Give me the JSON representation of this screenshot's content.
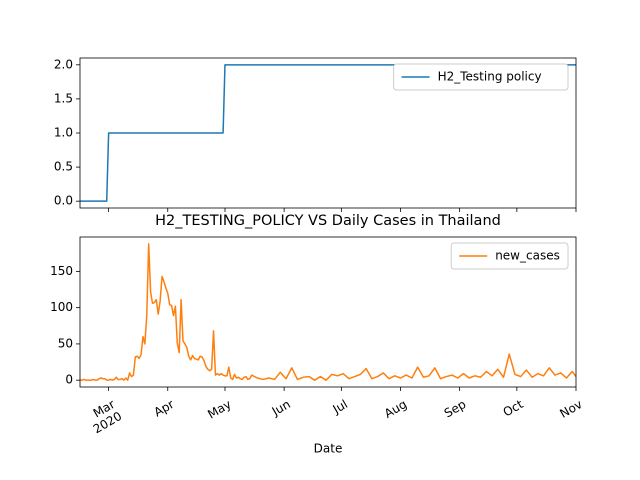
{
  "chart_data": [
    {
      "type": "line",
      "x": [
        "2020-02-15",
        "2020-02-29",
        "2020-03-01",
        "2020-04-30",
        "2020-05-01",
        "2020-11-01"
      ],
      "series": [
        {
          "name": "H2_Testing policy",
          "color": "#1f77b4",
          "values": [
            0,
            0,
            1,
            1,
            2,
            2
          ]
        }
      ],
      "xlim": [
        "2020-02-15",
        "2020-11-01"
      ],
      "xticks": [
        "2020-03-01",
        "2020-04-01",
        "2020-05-01",
        "2020-06-01",
        "2020-07-01",
        "2020-08-01",
        "2020-09-01",
        "2020-10-01",
        "2020-11-01"
      ],
      "ylim": [
        -0.1,
        2.1
      ],
      "yticks": [
        {
          "value": 0,
          "label": "0.0"
        },
        0.5,
        {
          "value": 1,
          "label": "1.0"
        },
        1.5,
        {
          "value": 2,
          "label": "2.0"
        }
      ],
      "legend": "upper right"
    },
    {
      "type": "line",
      "title": "H2_TESTING_POLICY VS Daily Cases in Thailand",
      "x_label": "Date",
      "x": [
        "2020-02-15",
        "2020-02-16",
        "2020-02-17",
        "2020-02-18",
        "2020-02-19",
        "2020-02-20",
        "2020-02-21",
        "2020-02-22",
        "2020-02-23",
        "2020-02-24",
        "2020-02-25",
        "2020-02-26",
        "2020-02-27",
        "2020-02-28",
        "2020-02-29",
        "2020-03-01",
        "2020-03-02",
        "2020-03-03",
        "2020-03-04",
        "2020-03-05",
        "2020-03-06",
        "2020-03-07",
        "2020-03-08",
        "2020-03-09",
        "2020-03-10",
        "2020-03-11",
        "2020-03-12",
        "2020-03-13",
        "2020-03-14",
        "2020-03-15",
        "2020-03-16",
        "2020-03-17",
        "2020-03-18",
        "2020-03-19",
        "2020-03-20",
        "2020-03-21",
        "2020-03-22",
        "2020-03-23",
        "2020-03-24",
        "2020-03-25",
        "2020-03-26",
        "2020-03-27",
        "2020-03-28",
        "2020-03-29",
        "2020-03-30",
        "2020-03-31",
        "2020-04-01",
        "2020-04-02",
        "2020-04-03",
        "2020-04-04",
        "2020-04-05",
        "2020-04-06",
        "2020-04-07",
        "2020-04-08",
        "2020-04-09",
        "2020-04-10",
        "2020-04-11",
        "2020-04-12",
        "2020-04-13",
        "2020-04-14",
        "2020-04-15",
        "2020-04-16",
        "2020-04-17",
        "2020-04-18",
        "2020-04-19",
        "2020-04-20",
        "2020-04-21",
        "2020-04-22",
        "2020-04-23",
        "2020-04-24",
        "2020-04-25",
        "2020-04-26",
        "2020-04-27",
        "2020-04-28",
        "2020-04-29",
        "2020-04-30",
        "2020-05-01",
        "2020-05-02",
        "2020-05-03",
        "2020-05-04",
        "2020-05-05",
        "2020-05-06",
        "2020-05-07",
        "2020-05-08",
        "2020-05-09",
        "2020-05-10",
        "2020-05-11",
        "2020-05-12",
        "2020-05-13",
        "2020-05-14",
        "2020-05-15",
        "2020-05-18",
        "2020-05-21",
        "2020-05-24",
        "2020-05-27",
        "2020-05-30",
        "2020-06-02",
        "2020-06-05",
        "2020-06-08",
        "2020-06-11",
        "2020-06-14",
        "2020-06-17",
        "2020-06-20",
        "2020-06-23",
        "2020-06-26",
        "2020-06-29",
        "2020-07-02",
        "2020-07-05",
        "2020-07-08",
        "2020-07-11",
        "2020-07-14",
        "2020-07-17",
        "2020-07-20",
        "2020-07-23",
        "2020-07-26",
        "2020-07-29",
        "2020-08-01",
        "2020-08-04",
        "2020-08-07",
        "2020-08-10",
        "2020-08-13",
        "2020-08-16",
        "2020-08-19",
        "2020-08-22",
        "2020-08-25",
        "2020-08-28",
        "2020-08-31",
        "2020-09-03",
        "2020-09-06",
        "2020-09-09",
        "2020-09-12",
        "2020-09-15",
        "2020-09-18",
        "2020-09-21",
        "2020-09-24",
        "2020-09-27",
        "2020-09-30",
        "2020-10-03",
        "2020-10-06",
        "2020-10-09",
        "2020-10-12",
        "2020-10-15",
        "2020-10-18",
        "2020-10-21",
        "2020-10-24",
        "2020-10-27",
        "2020-10-30",
        "2020-11-01"
      ],
      "series": [
        {
          "name": "new_cases",
          "color": "#ff7f0e",
          "values": [
            0,
            0,
            1,
            0,
            0,
            0,
            0,
            1,
            0,
            0,
            2,
            3,
            2,
            2,
            0,
            0,
            1,
            0,
            1,
            4,
            1,
            1,
            2,
            0,
            3,
            0,
            10,
            5,
            7,
            32,
            33,
            30,
            35,
            60,
            50,
            89,
            188,
            122,
            106,
            107,
            111,
            91,
            109,
            143,
            136,
            127,
            120,
            104,
            103,
            89,
            102,
            51,
            38,
            111,
            54,
            50,
            45,
            33,
            28,
            34,
            30,
            29,
            28,
            33,
            32,
            27,
            19,
            15,
            13,
            15,
            68,
            7,
            9,
            7,
            9,
            7,
            6,
            6,
            18,
            3,
            1,
            8,
            3,
            4,
            2,
            1,
            4,
            5,
            1,
            2,
            7,
            3,
            1,
            3,
            1,
            11,
            2,
            17,
            1,
            4,
            5,
            0,
            5,
            0,
            8,
            6,
            9,
            2,
            5,
            8,
            16,
            2,
            5,
            10,
            2,
            6,
            3,
            7,
            3,
            18,
            4,
            6,
            17,
            2,
            5,
            7,
            3,
            9,
            3,
            6,
            4,
            12,
            6,
            15,
            4,
            36,
            8,
            5,
            14,
            4,
            9,
            6,
            17,
            7,
            10,
            3,
            12,
            5
          ]
        }
      ],
      "xlim": [
        "2020-02-15",
        "2020-11-01"
      ],
      "xticks": [
        {
          "value": "2020-03-01",
          "label": "Mar\n2020"
        },
        {
          "value": "2020-04-01",
          "label": "Apr"
        },
        {
          "value": "2020-05-01",
          "label": "May"
        },
        {
          "value": "2020-06-01",
          "label": "Jun"
        },
        {
          "value": "2020-07-01",
          "label": "Jul"
        },
        {
          "value": "2020-08-01",
          "label": "Aug"
        },
        {
          "value": "2020-09-01",
          "label": "Sep"
        },
        {
          "value": "2020-10-01",
          "label": "Oct"
        },
        {
          "value": "2020-11-01",
          "label": "Nov"
        }
      ],
      "ylim": [
        -9.4,
        197.4
      ],
      "yticks": [
        0,
        50,
        100,
        150
      ],
      "legend": "upper right"
    }
  ]
}
